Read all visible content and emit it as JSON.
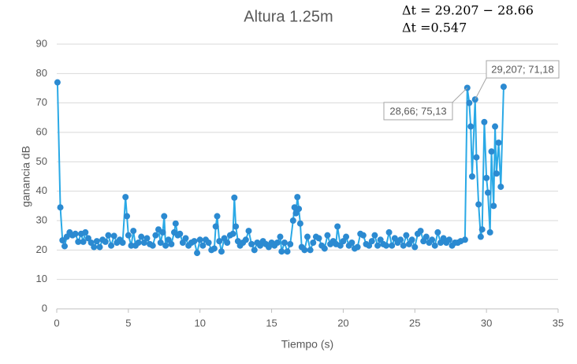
{
  "chart_data": {
    "type": "scatter_line",
    "title": "Altura 1.25m",
    "notes": [
      "Δt = 29.207 − 28.66",
      "Δt =0.547"
    ],
    "x_label": "Tiempo (s)",
    "y_label": "ganancia dB",
    "xlim": [
      0,
      35
    ],
    "xticks": [
      0,
      5,
      10,
      15,
      20,
      25,
      30,
      35
    ],
    "ylim": [
      0,
      90
    ],
    "yticks": [
      0,
      10,
      20,
      30,
      40,
      50,
      60,
      70,
      80,
      90
    ],
    "grid": true,
    "x": [
      0.05,
      0.25,
      0.4,
      0.55,
      0.7,
      0.9,
      1.1,
      1.3,
      1.5,
      1.7,
      1.85,
      2.0,
      2.2,
      2.4,
      2.6,
      2.8,
      3.0,
      3.2,
      3.4,
      3.6,
      3.8,
      4.0,
      4.2,
      4.4,
      4.6,
      4.8,
      4.9,
      5.0,
      5.2,
      5.35,
      5.5,
      5.7,
      5.9,
      6.1,
      6.3,
      6.5,
      6.7,
      6.9,
      7.1,
      7.25,
      7.4,
      7.5,
      7.6,
      7.8,
      8.0,
      8.2,
      8.3,
      8.45,
      8.6,
      8.8,
      9.0,
      9.2,
      9.4,
      9.6,
      9.8,
      10.0,
      10.2,
      10.4,
      10.6,
      10.8,
      11.0,
      11.1,
      11.2,
      11.35,
      11.5,
      11.7,
      11.9,
      12.1,
      12.3,
      12.4,
      12.5,
      12.65,
      12.8,
      13.0,
      13.2,
      13.4,
      13.6,
      13.8,
      14.0,
      14.2,
      14.4,
      14.6,
      14.8,
      15.0,
      15.2,
      15.4,
      15.6,
      15.7,
      15.9,
      16.1,
      16.3,
      16.5,
      16.6,
      16.7,
      16.8,
      16.9,
      17.0,
      17.1,
      17.3,
      17.5,
      17.7,
      17.9,
      18.1,
      18.3,
      18.5,
      18.7,
      18.9,
      19.1,
      19.3,
      19.5,
      19.6,
      19.8,
      20.0,
      20.2,
      20.4,
      20.6,
      20.8,
      21.0,
      21.2,
      21.4,
      21.6,
      21.8,
      22.0,
      22.2,
      22.4,
      22.6,
      22.8,
      23.0,
      23.2,
      23.4,
      23.6,
      23.8,
      24.0,
      24.2,
      24.4,
      24.6,
      24.8,
      25.0,
      25.2,
      25.4,
      25.6,
      25.8,
      26.0,
      26.2,
      26.4,
      26.6,
      26.8,
      27.0,
      27.2,
      27.4,
      27.6,
      27.8,
      28.0,
      28.2,
      28.5,
      28.66,
      28.8,
      28.9,
      29.0,
      29.207,
      29.3,
      29.45,
      29.6,
      29.7,
      29.85,
      30.0,
      30.1,
      30.25,
      30.35,
      30.5,
      30.6,
      30.7,
      30.85,
      31.0,
      31.2
    ],
    "series": [
      {
        "color": "#2aa9e6",
        "marker_color": "#2b8ad1",
        "values": [
          77,
          34.5,
          23.3,
          21.3,
          24.5,
          26,
          25,
          25.5,
          22.8,
          25.5,
          22.8,
          26,
          24,
          22.5,
          21,
          23,
          21,
          23.5,
          22.8,
          25,
          21.5,
          24.8,
          22.5,
          23.5,
          22.5,
          38,
          31.5,
          25,
          21.5,
          26.5,
          21.5,
          22.5,
          24.5,
          22.5,
          24,
          22,
          21.5,
          25,
          27,
          22.5,
          26,
          31.5,
          21.5,
          23.5,
          22,
          26,
          29,
          25,
          25.5,
          22.5,
          24,
          21.5,
          22.5,
          23,
          19,
          23.5,
          21.5,
          23.5,
          22.5,
          20,
          20.5,
          28,
          31.5,
          23,
          19.5,
          24,
          22.5,
          25,
          25.5,
          37.8,
          28,
          23,
          21.5,
          22.5,
          23.5,
          26.5,
          22,
          20,
          22.5,
          21.5,
          23,
          22,
          21,
          22.5,
          21.5,
          22.5,
          24.5,
          19.5,
          22.5,
          19.5,
          22,
          30,
          34.5,
          32.5,
          38,
          34,
          29,
          21,
          20,
          24.5,
          20,
          22.5,
          24.5,
          24,
          21.5,
          20.5,
          25,
          22,
          23,
          22,
          28,
          21.5,
          23,
          24.5,
          21.5,
          22.5,
          20.5,
          21,
          25.5,
          25,
          22,
          21.5,
          23,
          25,
          21.5,
          23.5,
          22,
          21.5,
          26,
          21.5,
          24,
          22.5,
          23.5,
          21.5,
          25,
          22,
          23.5,
          21,
          25.5,
          26.5,
          23,
          24.5,
          22.5,
          23.5,
          21.5,
          26,
          22.5,
          24,
          22.5,
          23.5,
          21.5,
          22.5,
          22.5,
          23,
          23.5,
          75.13,
          70,
          62,
          45,
          71.18,
          51.5,
          35.5,
          24.5,
          27,
          63.5,
          44.5,
          39.5,
          26,
          53.5,
          35,
          62,
          46,
          56.5,
          41.5,
          75.5
        ]
      }
    ],
    "annotations": [
      {
        "text": "29,207; 71,18",
        "x": 29.207,
        "y": 71.18
      },
      {
        "text": "28,66; 75,13",
        "x": 28.66,
        "y": 75.13
      }
    ]
  }
}
